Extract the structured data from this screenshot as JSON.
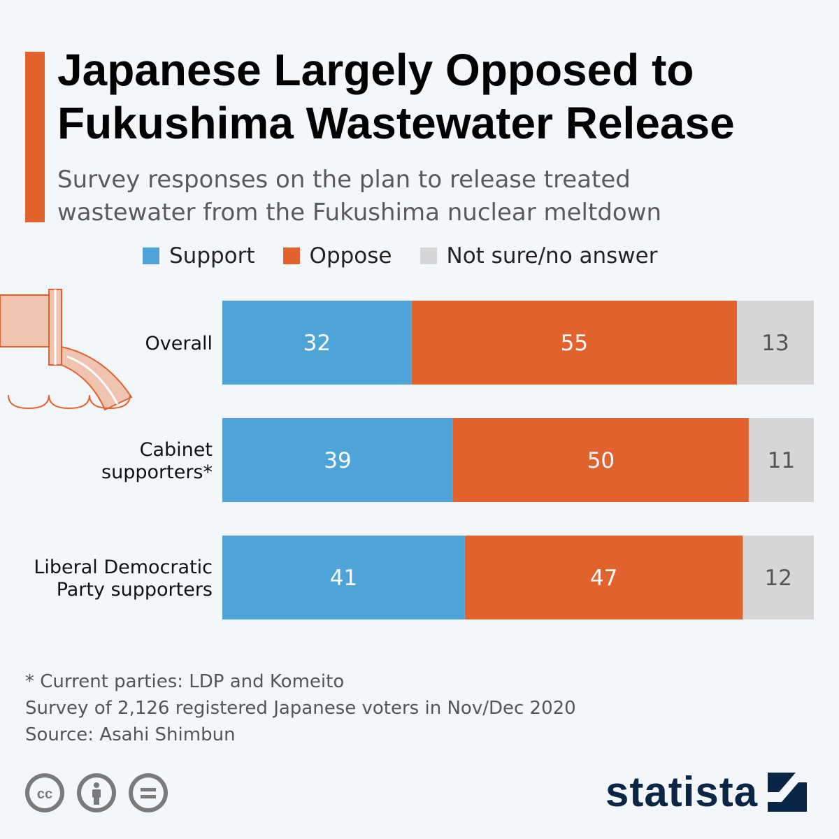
{
  "title": {
    "line1": "Japanese Largely Opposed to",
    "line2": "Fukushima Wastewater Release"
  },
  "subtitle": {
    "line1": "Survey responses on the plan to release treated",
    "line2": "wastewater from the Fukushima nuclear meltdown"
  },
  "colors": {
    "support": "#4ea4d9",
    "oppose": "#e2622d",
    "unsure": "#d6d6d6",
    "accent": "#e2622d",
    "brand": "#0b2546"
  },
  "chart_data": {
    "type": "bar",
    "orientation": "horizontal",
    "stacked": true,
    "categories": [
      "Overall",
      "Cabinet supporters*",
      "Liberal Democratic Party supporters"
    ],
    "category_lines": [
      [
        "Overall"
      ],
      [
        "Cabinet",
        "supporters*"
      ],
      [
        "Liberal Democratic",
        "Party supporters"
      ]
    ],
    "series": [
      {
        "name": "Support",
        "values": [
          32,
          39,
          41
        ]
      },
      {
        "name": "Oppose",
        "values": [
          55,
          50,
          47
        ]
      },
      {
        "name": "Not sure/no answer",
        "values": [
          13,
          11,
          12
        ]
      }
    ],
    "xlim": [
      0,
      100
    ],
    "legend_position": "top"
  },
  "footnotes": {
    "note": "* Current parties: LDP and Komeito",
    "survey": "Survey of 2,126 registered Japanese voters in Nov/Dec 2020",
    "source": "Source: Asahi Shimbun"
  },
  "license_icons": [
    "cc-icon",
    "attribution-icon",
    "no-derivatives-icon"
  ],
  "logo": {
    "text": "statista"
  }
}
